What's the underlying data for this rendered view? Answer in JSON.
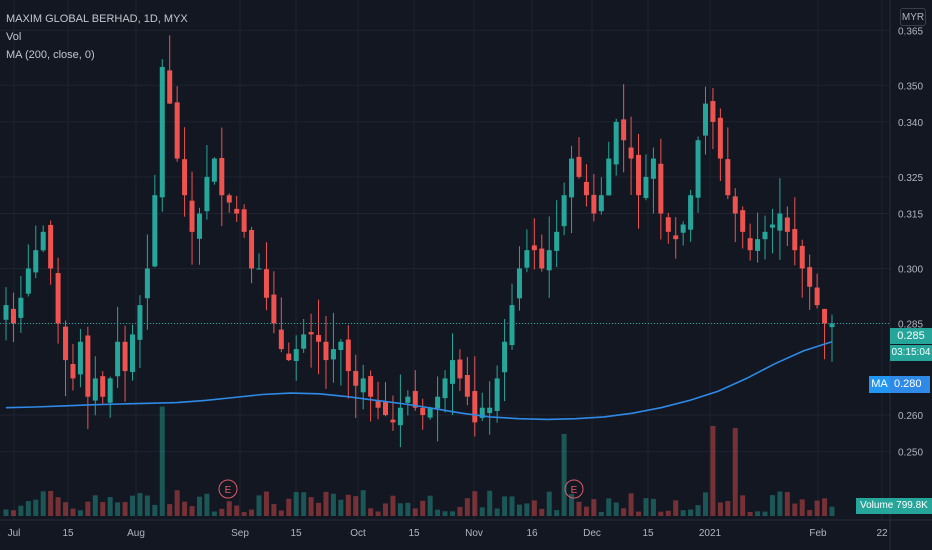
{
  "legend": {
    "symbol": "MAXIM GLOBAL BERHAD, 1D, MYX",
    "vol": "Vol",
    "ma": "MA (200, close, 0)"
  },
  "currency": "MYR",
  "last_price": "0.285",
  "countdown": "03:15:04",
  "ma_label": "MA",
  "ma_value": "0.280",
  "volume_label": "Volume",
  "volume_value": "799.8K",
  "earnings_marker": "E",
  "colors": {
    "background": "#131722",
    "up": "#26a69a",
    "down": "#ef5350",
    "ma": "#2e8ae6",
    "grid": "#1f2330",
    "text": "#b2b5be"
  },
  "chart_data": {
    "type": "candlestick",
    "y_axis_ticks": [
      "0.365",
      "0.350",
      "0.340",
      "0.325",
      "0.315",
      "0.300",
      "0.285",
      "0.260",
      "0.250"
    ],
    "x_axis_ticks": [
      "Jul",
      "15",
      "Aug",
      "Sep",
      "15",
      "Oct",
      "15",
      "Nov",
      "16",
      "Dec",
      "15",
      "2021",
      "Feb",
      "22"
    ],
    "ylim": [
      0.245,
      0.37
    ],
    "close_series": [
      0.29,
      0.285,
      0.292,
      0.3,
      0.305,
      0.31,
      0.3,
      0.285,
      0.275,
      0.27,
      0.28,
      0.265,
      0.27,
      0.265,
      0.27,
      0.28,
      0.272,
      0.282,
      0.29,
      0.3,
      0.32,
      0.355,
      0.345,
      0.33,
      0.32,
      0.31,
      0.315,
      0.325,
      0.33,
      0.32,
      0.318,
      0.315,
      0.31,
      0.3,
      0.3,
      0.292,
      0.285,
      0.278,
      0.275,
      0.278,
      0.282,
      0.282,
      0.28,
      0.275,
      0.278,
      0.28,
      0.272,
      0.268,
      0.27,
      0.265,
      0.262,
      0.26,
      0.258,
      0.262,
      0.265,
      0.262,
      0.26,
      0.262,
      0.265,
      0.27,
      0.275,
      0.27,
      0.265,
      0.258,
      0.262,
      0.262,
      0.27,
      0.28,
      0.29,
      0.3,
      0.305,
      0.305,
      0.3,
      0.305,
      0.31,
      0.32,
      0.33,
      0.325,
      0.32,
      0.315,
      0.32,
      0.33,
      0.34,
      0.335,
      0.33,
      0.32,
      0.325,
      0.33,
      0.315,
      0.31,
      0.308,
      0.312,
      0.32,
      0.335,
      0.345,
      0.34,
      0.33,
      0.32,
      0.315,
      0.31,
      0.305,
      0.308,
      0.31,
      0.312,
      0.315,
      0.31,
      0.305,
      0.3,
      0.295,
      0.29,
      0.285,
      0.285
    ],
    "ma_series": [
      0.262,
      0.2622,
      0.2625,
      0.2628,
      0.263,
      0.2632,
      0.2634,
      0.264,
      0.2648,
      0.2656,
      0.266,
      0.2658,
      0.265,
      0.264,
      0.263,
      0.2618,
      0.2605,
      0.2595,
      0.259,
      0.2588,
      0.259,
      0.2595,
      0.2605,
      0.262,
      0.264,
      0.2665,
      0.27,
      0.274,
      0.2775,
      0.28
    ],
    "volume_highlights": "spikes near early Aug, late Nov and late Dec",
    "last_close": 0.285,
    "ma_last": 0.28
  }
}
